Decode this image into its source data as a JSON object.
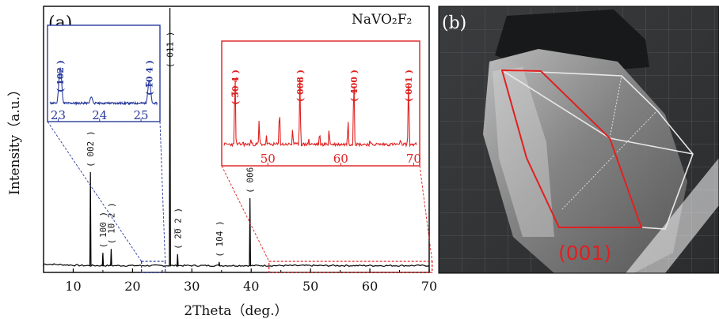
{
  "panels": {
    "a_label": "(a)",
    "b_label": "(b)"
  },
  "chart_data": {
    "type": "line",
    "title": "",
    "compound": "NaVO₂F₂",
    "xlabel": "2Theta（deg.）",
    "ylabel": "Intensity（a.u.）",
    "xlim": [
      5,
      70
    ],
    "ylim": [
      0,
      1
    ],
    "x_ticks": [
      10,
      20,
      30,
      40,
      50,
      60,
      70
    ],
    "grid": false,
    "series": [
      {
        "peaks": [
          {
            "x": 12.9,
            "y": 0.37,
            "label": "( 002 )"
          },
          {
            "x": 15.0,
            "y": 0.06,
            "label": "( 100 )"
          },
          {
            "x": 16.4,
            "y": 0.075,
            "label": "( 1̅0 2 )"
          },
          {
            "x": 26.3,
            "y": 1.0,
            "label": "( 011 )"
          },
          {
            "x": 27.6,
            "y": 0.055,
            "label": "( 2̅0 2 )"
          },
          {
            "x": 34.6,
            "y": 0.025,
            "label": "( 104 )"
          },
          {
            "x": 39.8,
            "y": 0.27,
            "label": "( 006 )"
          }
        ]
      }
    ],
    "insets": [
      {
        "name": "blue",
        "color": "#2a3b9c",
        "xlim": [
          22.8,
          25.4
        ],
        "x_ticks": [
          23,
          24,
          25
        ],
        "zoom_region": [
          21.5,
          25.5
        ],
        "peaks": [
          {
            "x": 23.05,
            "y": 0.72,
            "label": "( 102 )"
          },
          {
            "x": 23.8,
            "y": 0.17,
            "label": ""
          },
          {
            "x": 25.2,
            "y": 0.48,
            "label": "( 1̅0 4 )"
          }
        ]
      },
      {
        "name": "red",
        "color": "#e02020",
        "xlim": [
          44,
          70.5
        ],
        "x_ticks": [
          50,
          60,
          70
        ],
        "zoom_region": [
          43,
          70.5
        ],
        "peaks": [
          {
            "x": 45.5,
            "y": 0.92,
            "label": "( 3̅0 4 )"
          },
          {
            "x": 46.6,
            "y": 0.1,
            "label": ""
          },
          {
            "x": 47.7,
            "y": 0.12,
            "label": ""
          },
          {
            "x": 48.8,
            "y": 0.34,
            "label": ""
          },
          {
            "x": 49.8,
            "y": 0.16,
            "label": ""
          },
          {
            "x": 51.6,
            "y": 0.48,
            "label": ""
          },
          {
            "x": 53.4,
            "y": 0.24,
            "label": ""
          },
          {
            "x": 54.4,
            "y": 0.86,
            "label": "( 008 )"
          },
          {
            "x": 55.6,
            "y": 0.12,
            "label": ""
          },
          {
            "x": 57.1,
            "y": 0.2,
            "label": ""
          },
          {
            "x": 58.4,
            "y": 0.24,
            "label": ""
          },
          {
            "x": 61.0,
            "y": 0.34,
            "label": ""
          },
          {
            "x": 61.8,
            "y": 0.86,
            "label": "( 400 )"
          },
          {
            "x": 64.0,
            "y": 0.1,
            "label": ""
          },
          {
            "x": 68.2,
            "y": 0.12,
            "label": ""
          },
          {
            "x": 69.3,
            "y": 0.82,
            "label": "( 001 )"
          }
        ]
      }
    ]
  },
  "photo": {
    "face_label": "(001)",
    "face_label_color": "#e02020",
    "outline_color": "#e8e8e8",
    "highlight_color": "#e02020"
  }
}
